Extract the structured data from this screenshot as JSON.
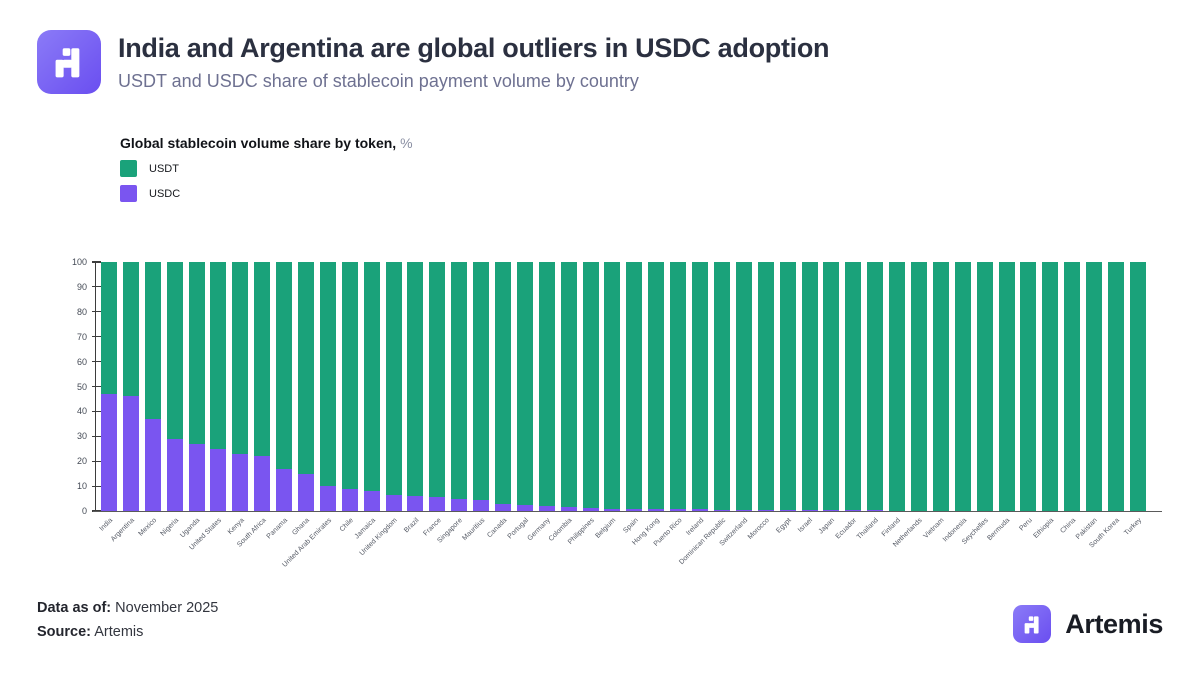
{
  "header": {
    "title": "India and Argentina are global outliers in USDC adoption",
    "subtitle": "USDT and USDC share of stablecoin payment volume by country"
  },
  "legend": {
    "title": "Global stablecoin volume share by token,",
    "unit": "%",
    "items": [
      {
        "label": "USDT",
        "color": "#1aa27a"
      },
      {
        "label": "USDC",
        "color": "#7a55f0"
      }
    ]
  },
  "chart_data": {
    "type": "bar",
    "stacked": true,
    "title": "Global stablecoin volume share by token, %",
    "xlabel": "",
    "ylabel": "",
    "ylim": [
      0,
      100
    ],
    "yticks": [
      0,
      10,
      20,
      30,
      40,
      50,
      60,
      70,
      80,
      90,
      100
    ],
    "grid": false,
    "legend_position": "top-left",
    "categories": [
      "India",
      "Argentina",
      "Mexico",
      "Nigeria",
      "Uganda",
      "United States",
      "Kenya",
      "South Africa",
      "Panama",
      "Ghana",
      "United Arab Emirates",
      "Chile",
      "Jamaica",
      "United Kingdom",
      "Brazil",
      "France",
      "Singapore",
      "Mauritius",
      "Canada",
      "Portugal",
      "Germany",
      "Colombia",
      "Philippines",
      "Belgium",
      "Spain",
      "Hong Kong",
      "Puerto Rico",
      "Ireland",
      "Dominican Republic",
      "Switzerland",
      "Morocco",
      "Egypt",
      "Israel",
      "Japan",
      "Ecuador",
      "Thailand",
      "Finland",
      "Netherlands",
      "Vietnam",
      "Indonesia",
      "Seychelles",
      "Bermuda",
      "Peru",
      "Ethiopia",
      "China",
      "Pakistan",
      "South Korea",
      "Turkey"
    ],
    "series": [
      {
        "name": "USDT",
        "color": "#1aa27a",
        "values": [
          53,
          54,
          63,
          71,
          73,
          75,
          77,
          78,
          83,
          85,
          90,
          91,
          92,
          93.5,
          94,
          94.5,
          95,
          95.5,
          97,
          97.5,
          98,
          98.2,
          98.8,
          99,
          99.2,
          99.2,
          99.2,
          99.3,
          99.4,
          99.5,
          99.5,
          99.6,
          99.6,
          99.7,
          99.7,
          99.7,
          99.8,
          99.8,
          99.8,
          99.8,
          99.9,
          99.9,
          99.9,
          99.9,
          99.9,
          99.9,
          99.9,
          99.9
        ]
      },
      {
        "name": "USDC",
        "color": "#7a55f0",
        "values": [
          47,
          46,
          37,
          29,
          27,
          25,
          23,
          22,
          17,
          15,
          10,
          9,
          8,
          6.5,
          6,
          5.5,
          5,
          4.5,
          3,
          2.5,
          2,
          1.8,
          1.2,
          1,
          0.8,
          0.8,
          0.8,
          0.7,
          0.6,
          0.5,
          0.5,
          0.4,
          0.4,
          0.3,
          0.3,
          0.3,
          0.2,
          0.2,
          0.2,
          0.2,
          0.1,
          0.1,
          0.1,
          0.1,
          0.1,
          0.1,
          0.1,
          0.1
        ]
      }
    ]
  },
  "footer": {
    "data_as_of_label": "Data as of:",
    "data_as_of_value": "November 2025",
    "source_label": "Source:",
    "source_value": "Artemis",
    "brand": "Artemis"
  }
}
